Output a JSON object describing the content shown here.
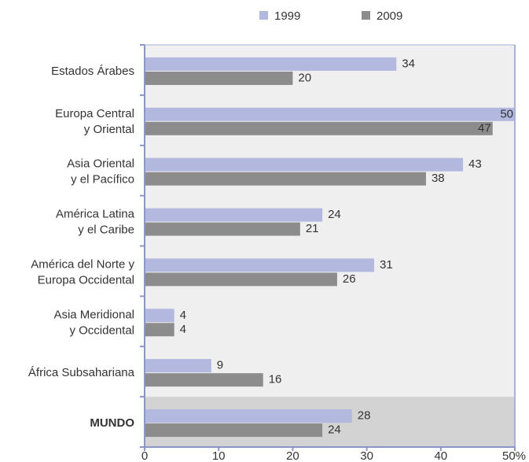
{
  "chart_data": {
    "type": "bar",
    "orientation": "horizontal",
    "categories": [
      [
        "Estados Árabes"
      ],
      [
        "Europa Central",
        "y Oriental"
      ],
      [
        "Asia Oriental",
        "y el Pacífico"
      ],
      [
        "América Latina",
        "y el Caribe"
      ],
      [
        "América del Norte y",
        "Europa Occidental"
      ],
      [
        "Asia Meridional",
        "y Occidental"
      ],
      [
        "África Subsahariana"
      ],
      [
        "MUNDO"
      ]
    ],
    "series": [
      {
        "name": "1999",
        "color": "#b3b9de",
        "values": [
          34,
          50,
          43,
          24,
          31,
          4,
          9,
          28
        ]
      },
      {
        "name": "2009",
        "color": "#8c8c8c",
        "values": [
          20,
          47,
          38,
          21,
          26,
          4,
          16,
          24
        ]
      }
    ],
    "xlim": [
      0,
      50
    ],
    "xticks": [
      0,
      10,
      20,
      30,
      40,
      {
        "value": 50,
        "label": "50%"
      }
    ],
    "legend": "top"
  }
}
